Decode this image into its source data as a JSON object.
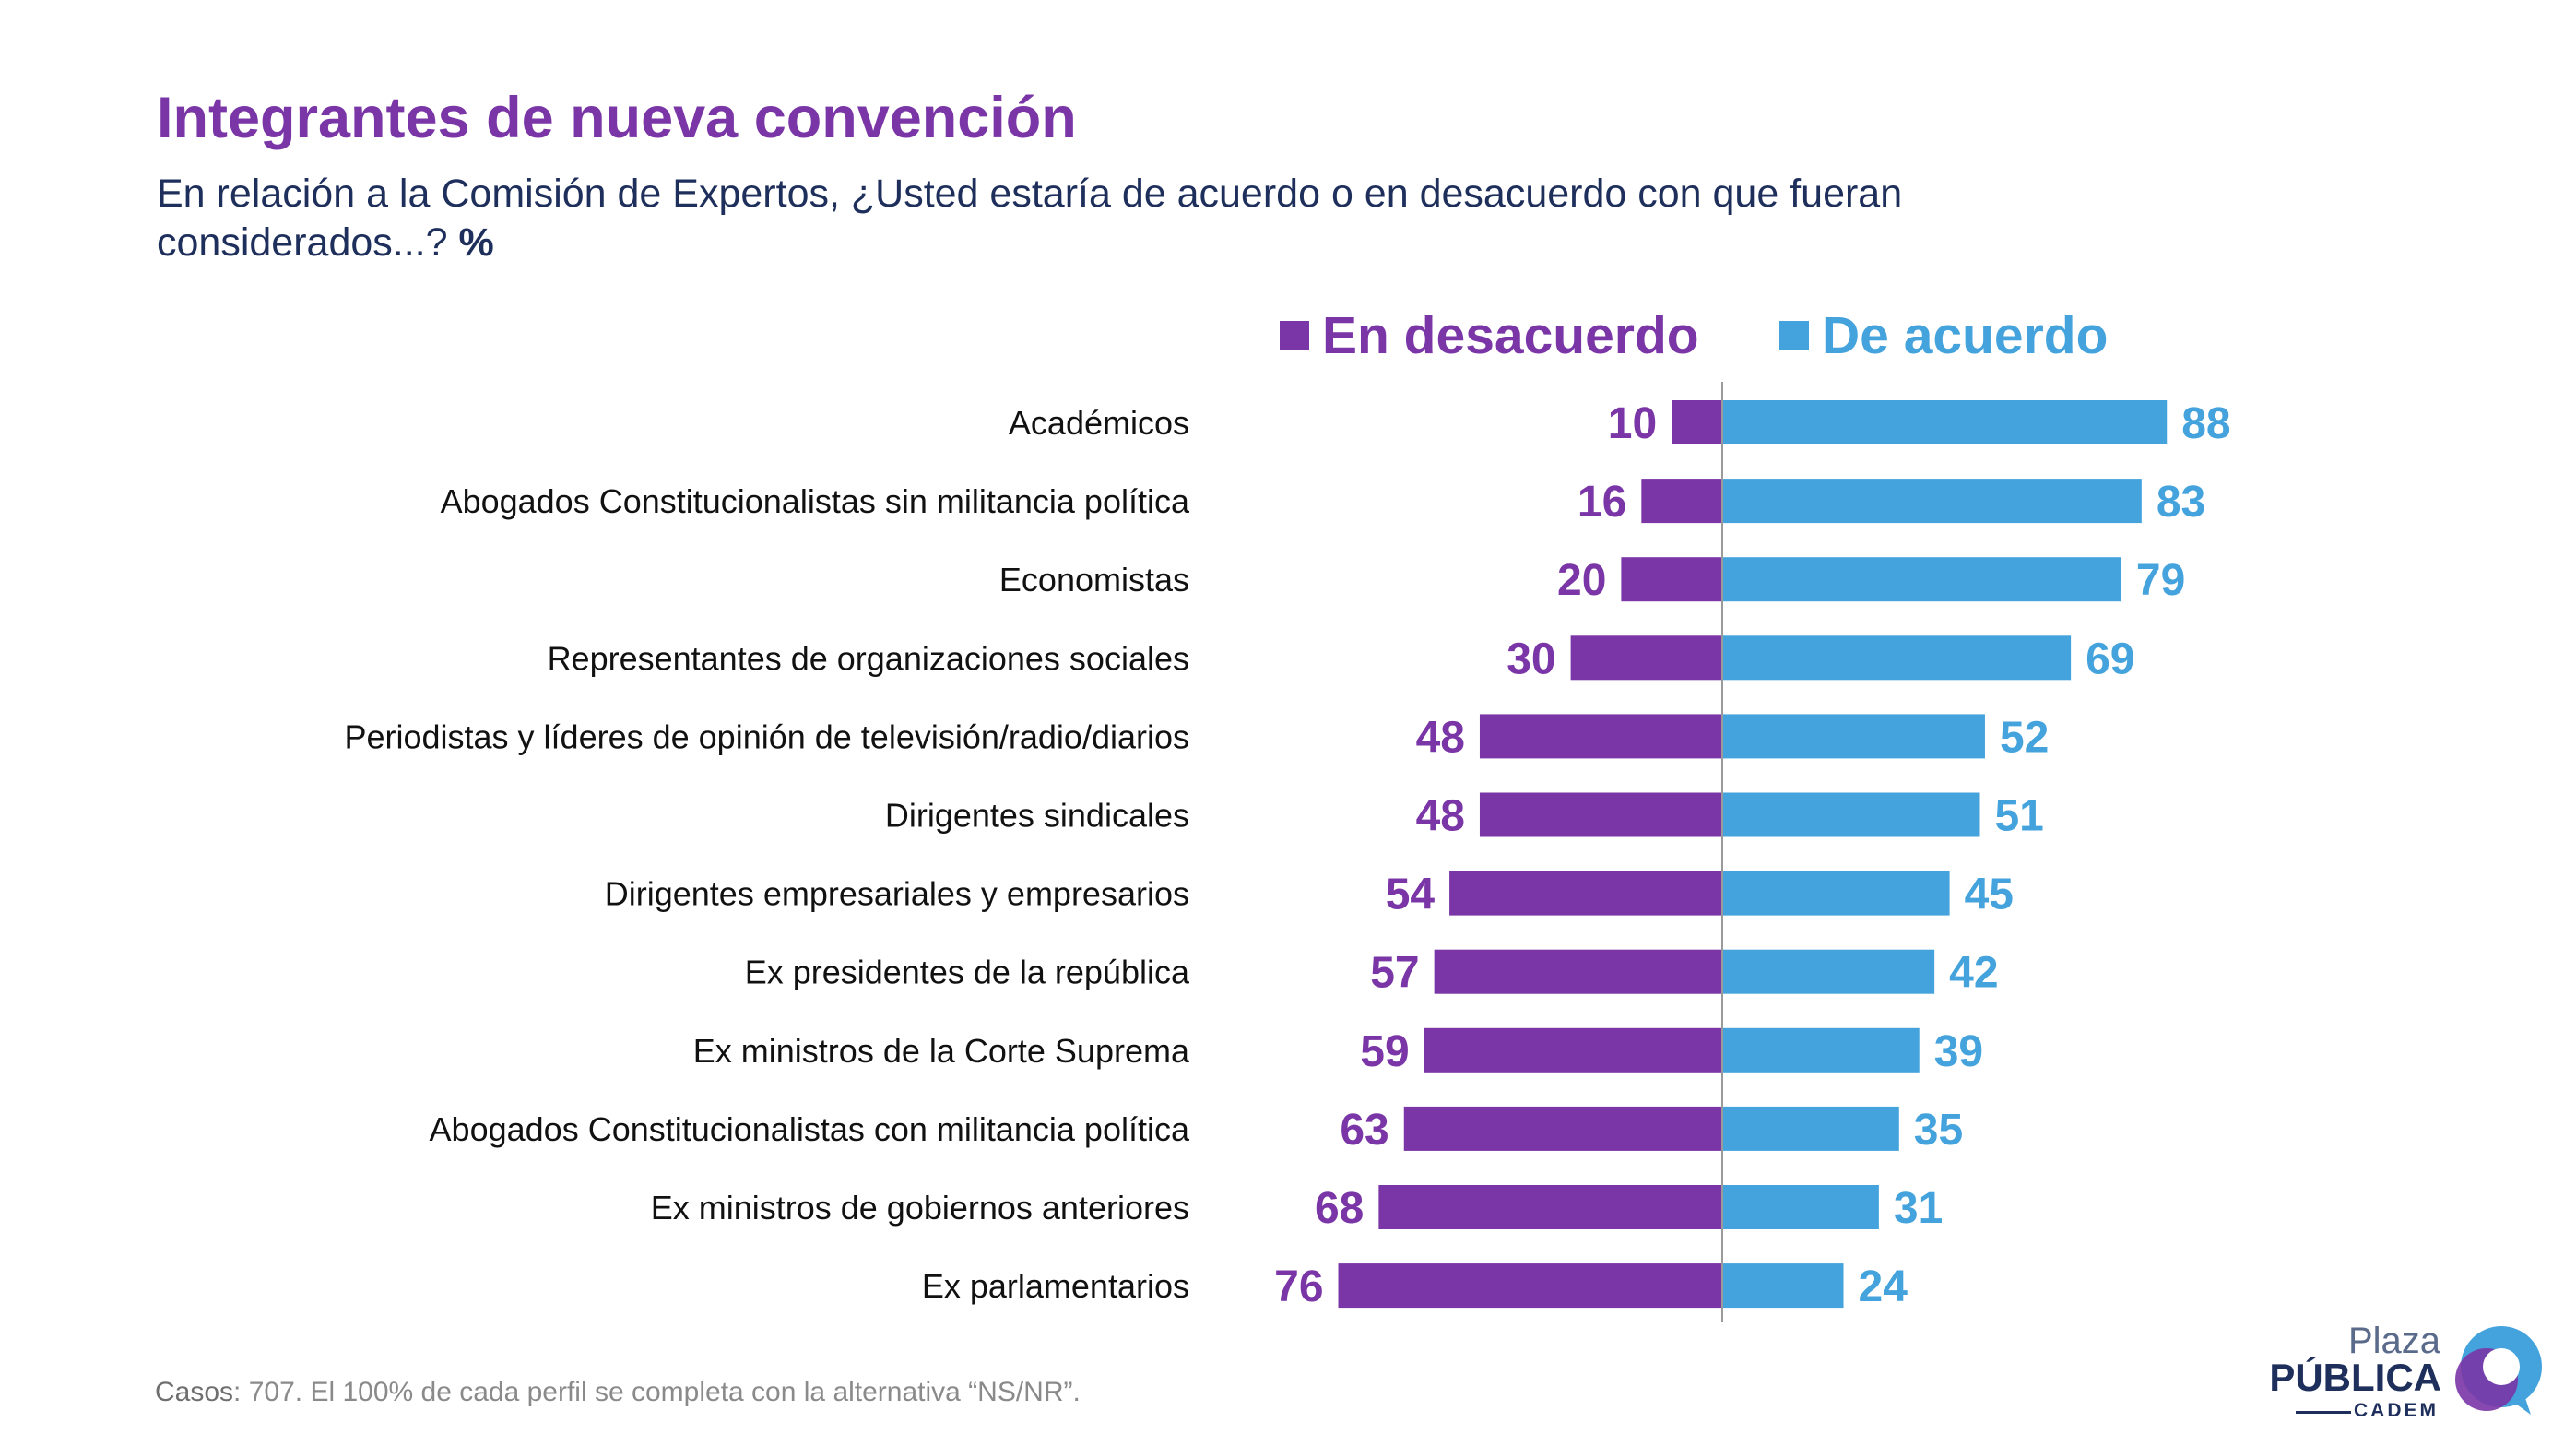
{
  "header": {
    "title": "Integrantes de nueva convención",
    "subtitle": "En relación a la Comisión de Expertos, ¿Usted estaría de acuerdo o en desacuerdo con que fueran considerados...?",
    "subtitle_unit": "%"
  },
  "legend": {
    "disagree_label": "En desacuerdo",
    "agree_label": "De acuerdo"
  },
  "colors": {
    "disagree": "#7a35a6",
    "agree": "#44a3dc",
    "title": "#7a35a6",
    "text": "#1e2f5c"
  },
  "chart_data": {
    "type": "bar",
    "orientation": "horizontal-diverging",
    "categories": [
      "Académicos",
      "Abogados Constitucionalistas sin militancia política",
      "Economistas",
      "Representantes de organizaciones sociales",
      "Periodistas y líderes de opinión de televisión/radio/diarios",
      "Dirigentes sindicales",
      "Dirigentes empresariales y empresarios",
      "Ex presidentes de la república",
      "Ex ministros de la Corte Suprema",
      "Abogados Constitucionalistas con militancia política",
      "Ex ministros de gobiernos anteriores",
      "Ex parlamentarios"
    ],
    "series": [
      {
        "name": "En desacuerdo",
        "values": [
          10,
          16,
          20,
          30,
          48,
          48,
          54,
          57,
          59,
          63,
          68,
          76
        ]
      },
      {
        "name": "De acuerdo",
        "values": [
          88,
          83,
          79,
          69,
          52,
          51,
          45,
          42,
          39,
          35,
          31,
          24
        ]
      }
    ],
    "legend_position": "top",
    "grid": false
  },
  "footnote": {
    "label": "Casos",
    "text": ": 707. El 100% de cada perfil se completa con la alternativa “NS/NR”."
  },
  "logo": {
    "line1": "Plaza",
    "line2": "PÚBLICA",
    "line3": "CADEM"
  }
}
